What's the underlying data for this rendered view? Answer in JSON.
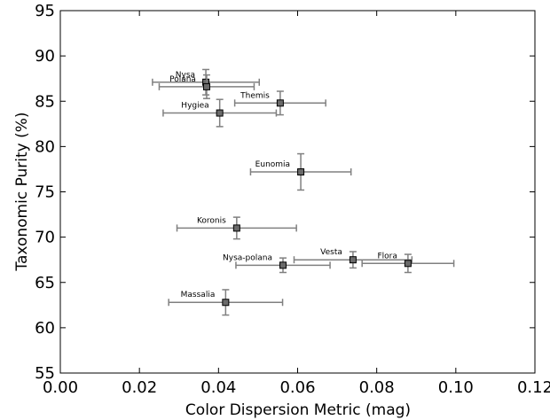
{
  "chart_data": {
    "type": "scatter",
    "title": "",
    "xlabel": "Color Dispersion Metric (mag)",
    "ylabel": "Taxonomic Purity (%)",
    "xlim": [
      0.0,
      0.12
    ],
    "ylim": [
      55,
      95
    ],
    "xticks": [
      "0.00",
      "0.02",
      "0.04",
      "0.06",
      "0.08",
      "0.10",
      "0.12"
    ],
    "yticks": [
      "55",
      "60",
      "65",
      "70",
      "75",
      "80",
      "85",
      "90",
      "95"
    ],
    "grid": false,
    "marker_color": "#6a6a6a",
    "errorbar_color": "#808080",
    "points": [
      {
        "label": "Nysa",
        "x": 0.0368,
        "y": 87.1,
        "xerr": 0.0135,
        "yerr": 1.4
      },
      {
        "label": "Polana",
        "x": 0.037,
        "y": 86.6,
        "xerr": 0.012,
        "yerr": 1.3
      },
      {
        "label": "Themis",
        "x": 0.0556,
        "y": 84.8,
        "xerr": 0.0115,
        "yerr": 1.3
      },
      {
        "label": "Hygiea",
        "x": 0.0403,
        "y": 83.7,
        "xerr": 0.0143,
        "yerr": 1.5
      },
      {
        "label": "Eunomia",
        "x": 0.0608,
        "y": 77.2,
        "xerr": 0.0127,
        "yerr": 2.0
      },
      {
        "label": "Koronis",
        "x": 0.0446,
        "y": 71.0,
        "xerr": 0.0151,
        "yerr": 1.2
      },
      {
        "label": "Vesta",
        "x": 0.074,
        "y": 67.5,
        "xerr": 0.0149,
        "yerr": 0.9
      },
      {
        "label": "Nysa-polana",
        "x": 0.0563,
        "y": 66.9,
        "xerr": 0.0119,
        "yerr": 0.8
      },
      {
        "label": "Flora",
        "x": 0.0879,
        "y": 67.1,
        "xerr": 0.0116,
        "yerr": 1.0
      },
      {
        "label": "Massalia",
        "x": 0.0418,
        "y": 62.8,
        "xerr": 0.0144,
        "yerr": 1.4
      }
    ]
  }
}
